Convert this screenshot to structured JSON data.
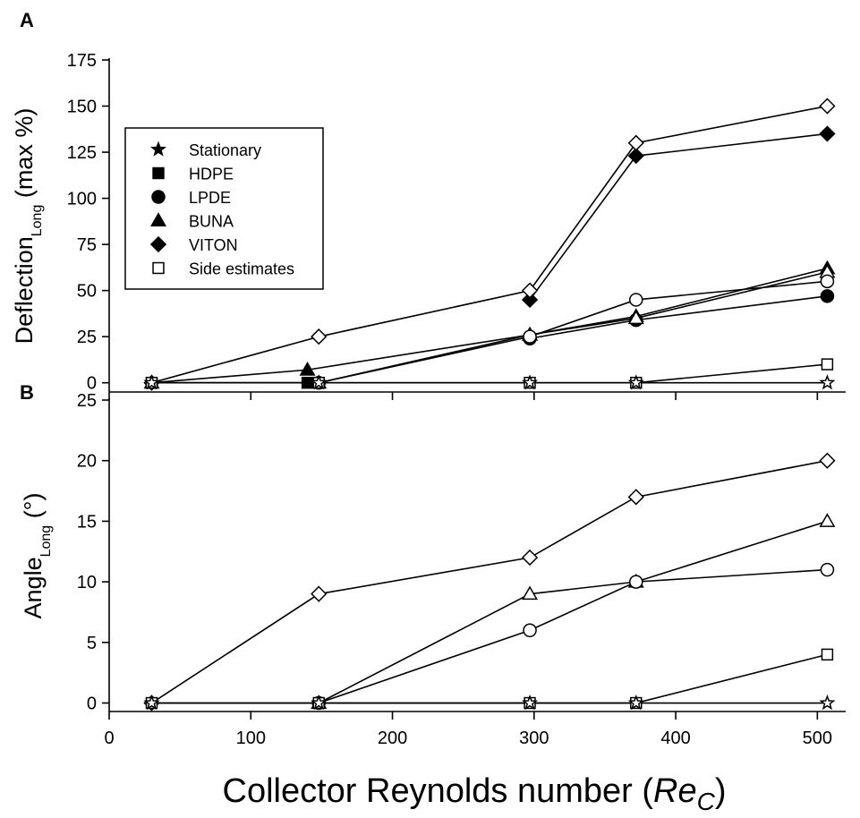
{
  "figure": {
    "xlabel_main": "Collector Reynolds number (",
    "xlabel_italic": "Re",
    "xlabel_sub": "C",
    "xlabel_close": ")"
  },
  "chart_data": [
    {
      "panel": "A",
      "type": "line",
      "ylabel_main": "Deflection",
      "ylabel_sub": "Long",
      "ylabel_unit": " (max %)",
      "xlim": [
        0,
        520
      ],
      "ylim": [
        -5,
        175
      ],
      "xticks": [
        0,
        100,
        200,
        300,
        400,
        500
      ],
      "yticks": [
        0,
        25,
        50,
        75,
        100,
        125,
        150,
        175
      ],
      "legend": {
        "placement": "upper-left",
        "entries": [
          {
            "label": "Stationary",
            "marker": "star",
            "fill": "filled"
          },
          {
            "label": "HDPE",
            "marker": "square",
            "fill": "filled"
          },
          {
            "label": "LPDE",
            "marker": "circle",
            "fill": "filled"
          },
          {
            "label": "BUNA",
            "marker": "triangle",
            "fill": "filled"
          },
          {
            "label": "VITON",
            "marker": "diamond",
            "fill": "filled"
          },
          {
            "label": "Side estimates",
            "marker": "square",
            "fill": "open"
          }
        ]
      },
      "series": [
        {
          "name": "HDPE",
          "marker": "square",
          "fill": "filled",
          "x": [
            30,
            140
          ],
          "y": [
            0,
            0
          ]
        },
        {
          "name": "BUNA",
          "marker": "triangle",
          "fill": "filled",
          "x": [
            30,
            140,
            297,
            372,
            507
          ],
          "y": [
            0,
            7,
            26,
            36,
            62
          ]
        },
        {
          "name": "VITON",
          "marker": "diamond",
          "fill": "filled",
          "x": [
            297,
            372,
            507
          ],
          "y": [
            45,
            123,
            135
          ]
        },
        {
          "name": "LPDE",
          "marker": "circle",
          "fill": "filled",
          "x": [
            297,
            372,
            507
          ],
          "y": [
            24,
            34,
            47
          ]
        },
        {
          "name": "",
          "marker": "triangle",
          "fill": "open",
          "x": [
            148,
            297,
            372,
            507
          ],
          "y": [
            0,
            26,
            35,
            60
          ]
        },
        {
          "name": "",
          "marker": "circle",
          "fill": "open",
          "x": [
            148,
            297,
            372,
            507
          ],
          "y": [
            0,
            25,
            45,
            55
          ]
        },
        {
          "name": "",
          "marker": "diamond",
          "fill": "open",
          "x": [
            30,
            148,
            297,
            372,
            507
          ],
          "y": [
            0,
            25,
            50,
            130,
            150
          ]
        },
        {
          "name": "Side estimates",
          "marker": "square",
          "fill": "open",
          "x": [
            30,
            148,
            297,
            372,
            507
          ],
          "y": [
            0,
            0,
            0,
            0,
            10
          ]
        },
        {
          "name": "Stationary",
          "marker": "star",
          "fill": "open",
          "x": [
            30,
            148,
            297,
            372,
            507
          ],
          "y": [
            0,
            0,
            0,
            0,
            0
          ]
        }
      ]
    },
    {
      "panel": "B",
      "type": "line",
      "ylabel_main": "Angle",
      "ylabel_sub": "Long",
      "ylabel_unit": " (°)",
      "xlim": [
        0,
        520
      ],
      "ylim": [
        -0.7,
        25
      ],
      "xticks": [
        0,
        100,
        200,
        300,
        400,
        500
      ],
      "xticklabels": [
        "0",
        "100",
        "200",
        "300",
        "400",
        "500"
      ],
      "yticks": [
        0,
        5,
        10,
        15,
        20,
        25
      ],
      "series": [
        {
          "name": "",
          "marker": "diamond",
          "fill": "open",
          "x": [
            30,
            148,
            297,
            372,
            507
          ],
          "y": [
            0,
            9,
            12,
            17,
            20
          ]
        },
        {
          "name": "",
          "marker": "triangle",
          "fill": "open",
          "x": [
            148,
            297,
            372,
            507
          ],
          "y": [
            0,
            9,
            10,
            15
          ]
        },
        {
          "name": "",
          "marker": "circle",
          "fill": "open",
          "x": [
            148,
            297,
            372,
            507
          ],
          "y": [
            0,
            6,
            10,
            11
          ]
        },
        {
          "name": "",
          "marker": "square",
          "fill": "open",
          "x": [
            30,
            148,
            297,
            372,
            507
          ],
          "y": [
            0,
            0,
            0,
            0,
            4
          ]
        },
        {
          "name": "",
          "marker": "star",
          "fill": "open",
          "x": [
            30,
            148,
            297,
            372,
            507
          ],
          "y": [
            0,
            0,
            0,
            0,
            0
          ]
        }
      ]
    }
  ]
}
